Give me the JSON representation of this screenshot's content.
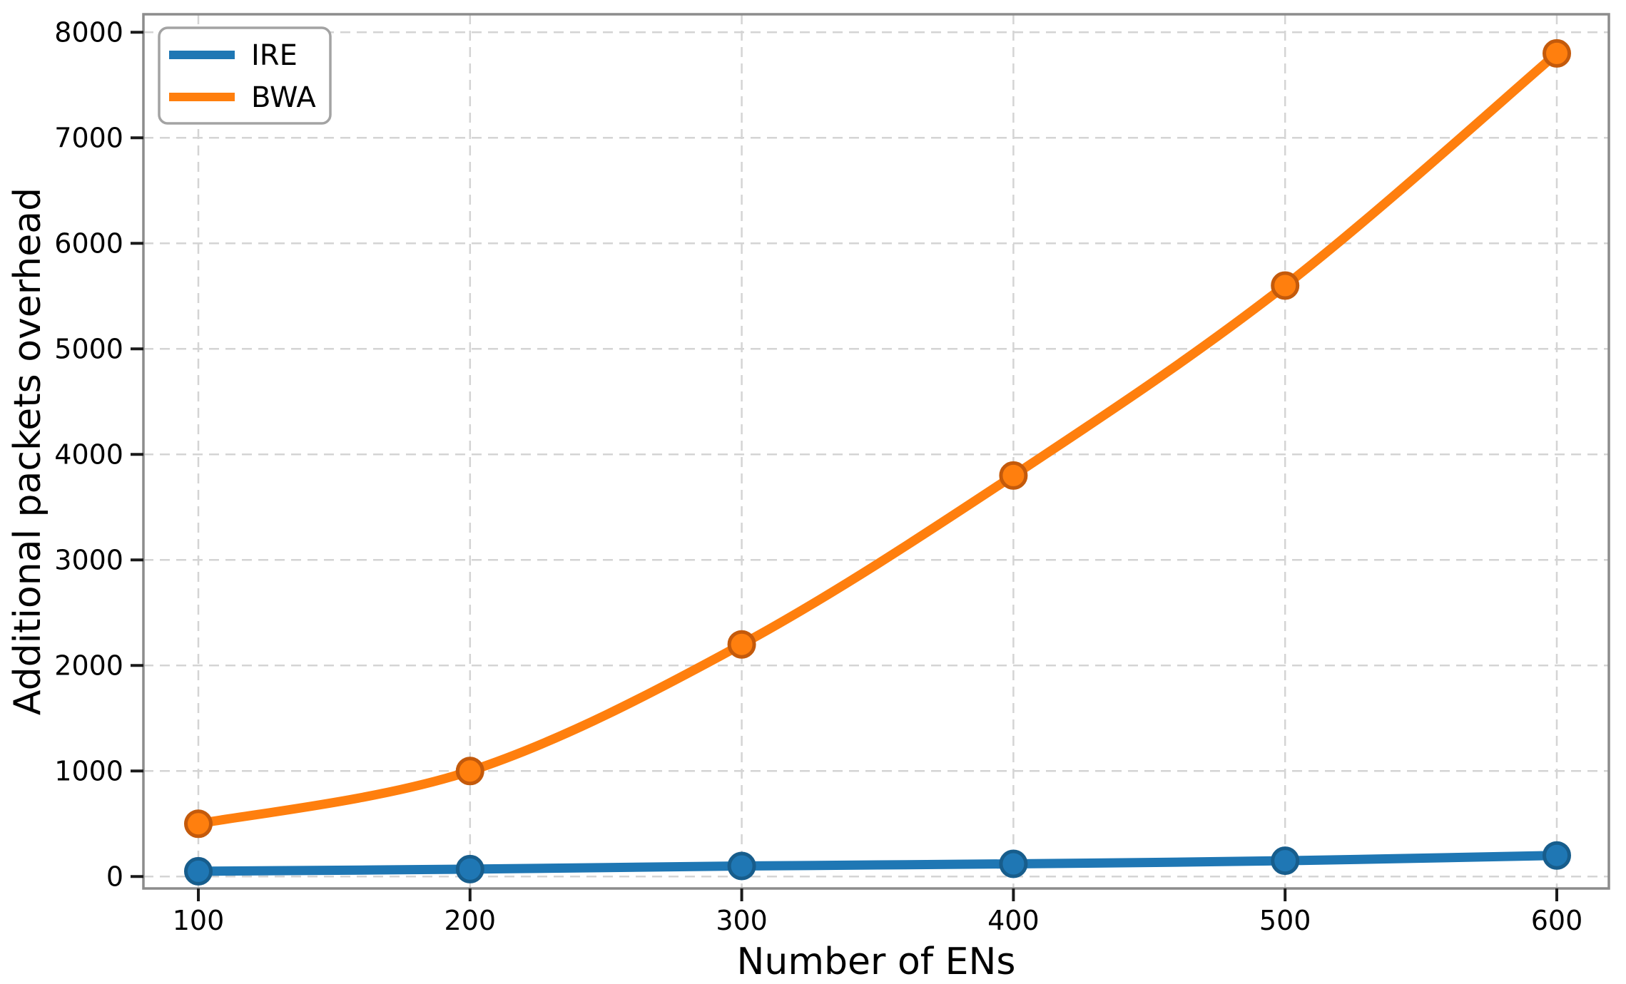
{
  "figure": {
    "background": "#ffffff"
  },
  "chart_data": {
    "type": "line",
    "title": "",
    "xlabel": "Number of ENs",
    "ylabel": "Additional packets overhead",
    "x": [
      100,
      200,
      300,
      400,
      500,
      600
    ],
    "series": [
      {
        "name": "IRE",
        "color": "#1f77b4",
        "marker_edge_color": "#175d8c",
        "marker": "circle",
        "values": [
          50,
          70,
          100,
          120,
          150,
          200
        ]
      },
      {
        "name": "BWA",
        "color": "#ff7f0e",
        "marker_edge_color": "#c45a0b",
        "marker": "circle",
        "values": [
          500,
          1000,
          2200,
          3800,
          5600,
          7800
        ]
      }
    ],
    "x_ticks": [
      100,
      200,
      300,
      400,
      500,
      600
    ],
    "y_ticks": [
      0,
      1000,
      2000,
      3000,
      4000,
      5000,
      6000,
      7000,
      8000
    ],
    "xlim": [
      80,
      620
    ],
    "ylim": [
      -110,
      8200
    ],
    "grid": true,
    "grid_style": "dashed",
    "grid_color": "#d4d4d4",
    "spine_color": "#8c8c8c",
    "legend_position": "upper left"
  }
}
